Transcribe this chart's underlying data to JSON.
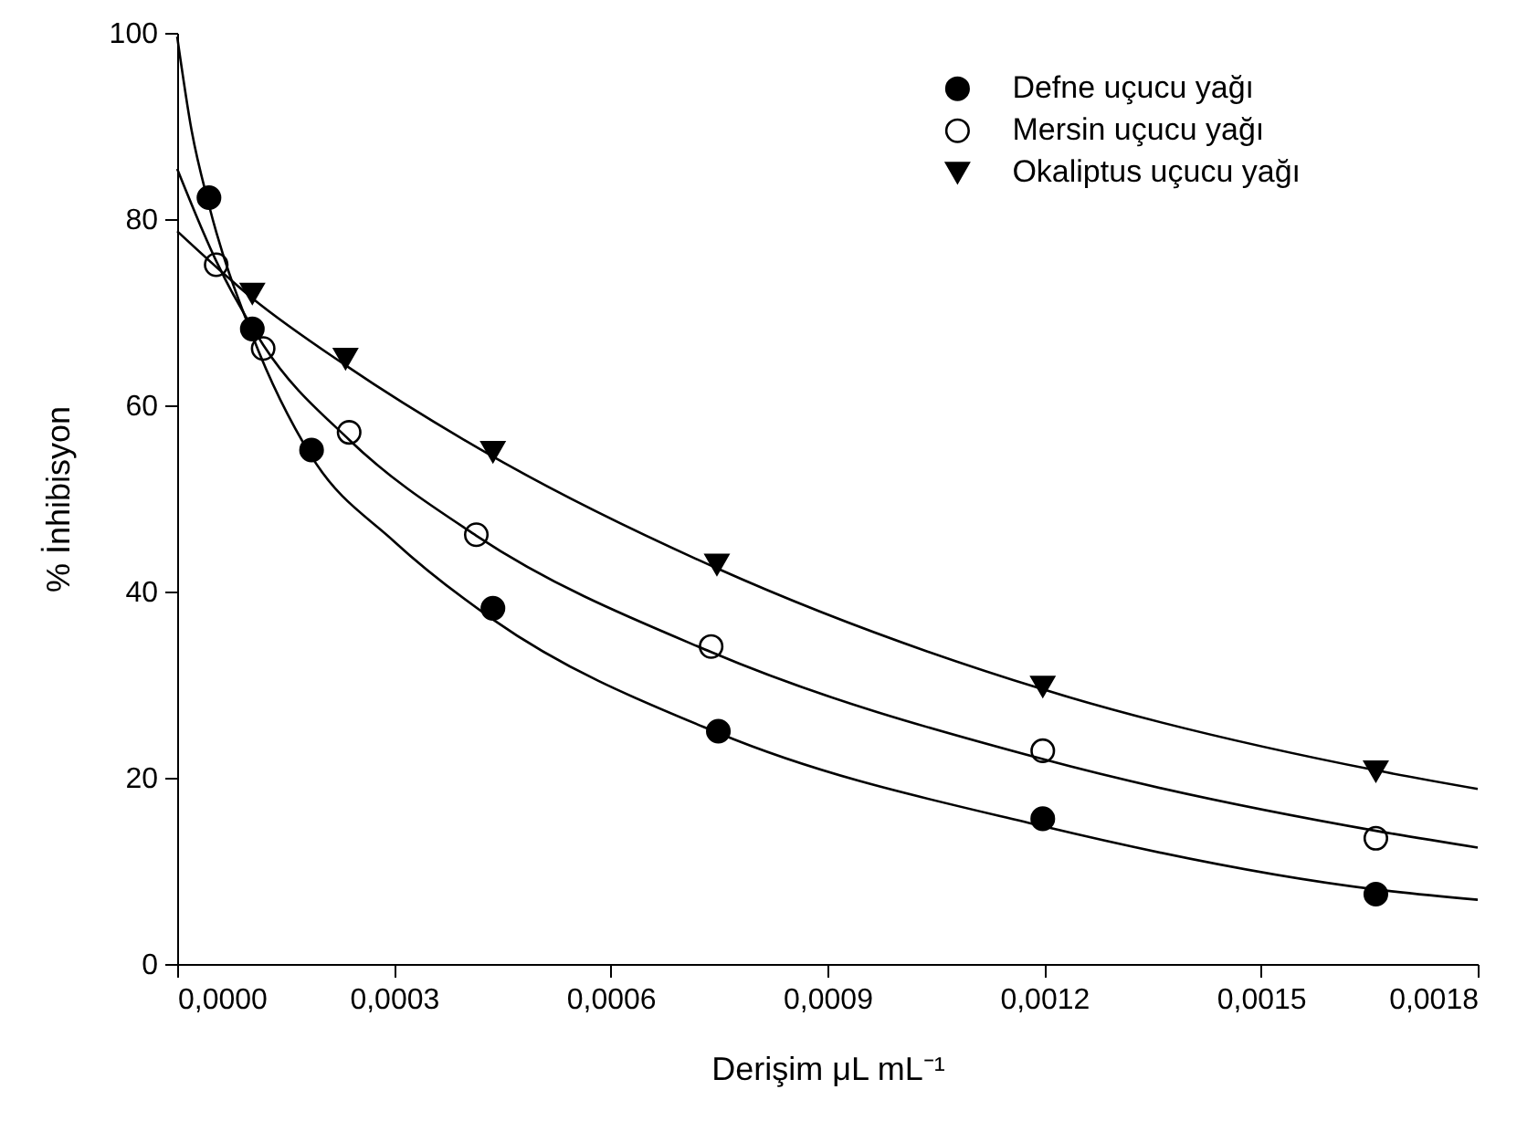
{
  "chart_data": {
    "type": "scatter",
    "xlabel": "Derişim μL mL⁻¹",
    "ylabel": "% İnhibisyon",
    "xlim": [
      0,
      0.0018
    ],
    "ylim": [
      0,
      100
    ],
    "xticks": [
      {
        "value": 0,
        "label": "0,0000"
      },
      {
        "value": 0.0003,
        "label": "0,0003"
      },
      {
        "value": 0.0006,
        "label": "0,0006"
      },
      {
        "value": 0.0009,
        "label": "0,0009"
      },
      {
        "value": 0.0012,
        "label": "0,0012"
      },
      {
        "value": 0.0015,
        "label": "0,0015"
      },
      {
        "value": 0.0018,
        "label": "0,0018"
      }
    ],
    "yticks": [
      0,
      20,
      40,
      60,
      80,
      100
    ],
    "grid": false,
    "legend": "top right",
    "series": [
      {
        "name": "Defne uçucu yağı",
        "type": "scatter",
        "marker": "circle",
        "color": "#000000",
        "x": [
          4.4e-05,
          0.000104,
          0.000186,
          0.000437,
          0.000749,
          0.001198,
          0.001659
        ],
        "values": [
          82.3,
          68.2,
          55.2,
          38.2,
          25.0,
          15.6,
          7.5
        ]
      },
      {
        "name": "Mersin uçucu yağı",
        "type": "scatter",
        "marker": "circle",
        "color": "#ffffff",
        "x": [
          5.4e-05,
          0.000119,
          0.000238,
          0.000414,
          0.000739,
          0.001198,
          0.001659
        ],
        "values": [
          75.1,
          66.1,
          57.1,
          46.1,
          34.1,
          22.9,
          13.5
        ]
      },
      {
        "name": "Okaliptus uçucu yağı",
        "type": "scatter",
        "marker": "triangle",
        "color": "#000000",
        "x": [
          0.000104,
          0.000233,
          0.000437,
          0.000747,
          0.001198,
          0.001659
        ],
        "values": [
          72.0,
          65.0,
          55.0,
          42.9,
          29.8,
          20.7
        ]
      },
      {
        "type": "line",
        "color": "#000000",
        "x": [
          0,
          2e-05,
          4.4e-05,
          0.000104,
          0.000186,
          0.0003,
          0.000437,
          0.000749,
          0.001198,
          0.001659,
          0.0018
        ],
        "values": [
          99.6,
          89.5,
          81.5,
          67.5,
          54.5,
          45.4,
          37.0,
          24.8,
          14.8,
          8.0,
          6.9
        ]
      },
      {
        "type": "line",
        "color": "#000000",
        "x": [
          0,
          5.4e-05,
          0.000119,
          0.000238,
          0.000414,
          0.000739,
          0.001198,
          0.001659,
          0.0018
        ],
        "values": [
          85.4,
          75.5,
          66.5,
          56.3,
          46.0,
          33.5,
          22.0,
          14.3,
          12.5
        ]
      },
      {
        "type": "line",
        "color": "#000000",
        "x": [
          0,
          0.000104,
          0.000233,
          0.000437,
          0.000747,
          0.001198,
          0.001659,
          0.0018
        ],
        "values": [
          78.7,
          71.5,
          64.3,
          54.5,
          42.5,
          29.5,
          20.8,
          18.8
        ]
      }
    ]
  }
}
